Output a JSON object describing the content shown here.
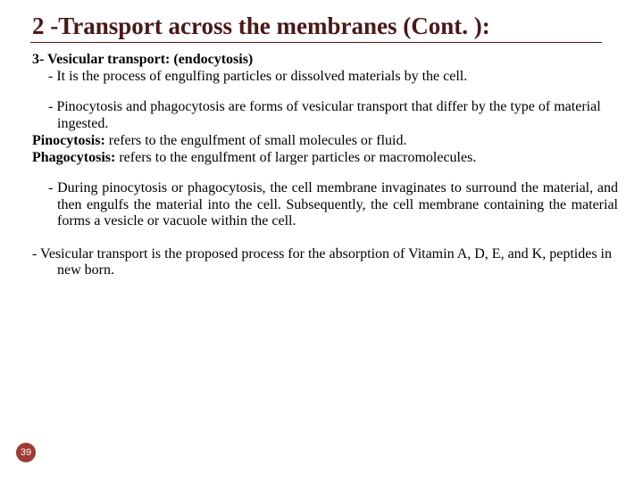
{
  "title": "2 -Transport across the membranes (Cont. ):",
  "heading": "3- Vesicular transport: (endocytosis)",
  "intro_bullet": "It is the process of engulfing particles or dissolved materials by the cell.",
  "forms_bullet": "Pinocytosis and phagocytosis are forms of vesicular transport that differ by the type of material ingested.",
  "pino_label": "Pinocytosis:",
  "pino_text": " refers to the engulfment of small molecules or fluid.",
  "phago_label": "Phagocytosis:",
  "phago_text": " refers to the engulfment of larger particles or macromolecules.",
  "process_bullet": "During pinocytosis or phagocytosis, the cell membrane invaginates to surround the material, and then engulfs  the material into the cell. Subsequently, the cell membrane containing the material forms a vesicle or vacuole within the cell.",
  "last_para": "- Vesicular transport is the proposed process for the absorption of Vitamin A, D, E, and K, peptides in new born.",
  "page_number": "39",
  "colors": {
    "title_color": "#4a1818",
    "text_color": "#000000",
    "badge_bg": "#9e3b33",
    "badge_text": "#ffffff",
    "background": "#ffffff"
  }
}
